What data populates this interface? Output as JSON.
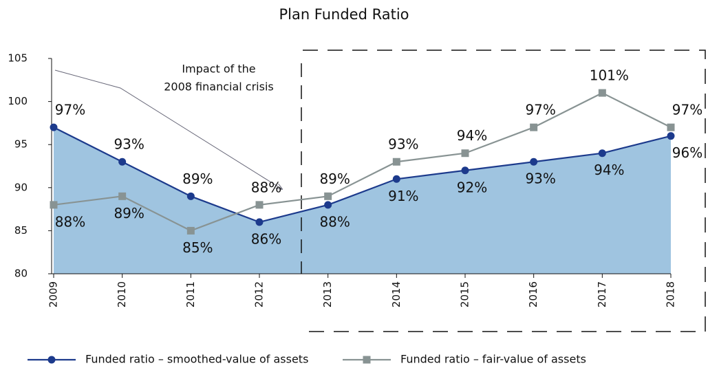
{
  "chart_data": {
    "type": "line",
    "title": "Plan Funded Ratio",
    "annotation": [
      "Impact of the",
      "2008 financial crisis"
    ],
    "categories": [
      "2009",
      "2010",
      "2011",
      "2012",
      "2013",
      "2014",
      "2015",
      "2016",
      "2017",
      "2018"
    ],
    "series": [
      {
        "name": "Funded ratio – smoothed-value of assets",
        "color": "#1c3a8c",
        "area_color": "#9fc4e0",
        "values": [
          97,
          93,
          89,
          86,
          88,
          91,
          92,
          93,
          94,
          96
        ],
        "value_labels": [
          "97%",
          "93%",
          "89%",
          "86%",
          "88%",
          "91%",
          "92%",
          "93%",
          "94%",
          "96%"
        ]
      },
      {
        "name": "Funded ratio – fair-value of assets",
        "color": "#889393",
        "values": [
          88,
          89,
          85,
          88,
          89,
          93,
          94,
          97,
          101,
          97
        ],
        "value_labels": [
          "88%",
          "89%",
          "85%",
          "88%",
          "89%",
          "93%",
          "94%",
          "97%",
          "101%",
          "97%"
        ]
      }
    ],
    "ylim": [
      80,
      105
    ],
    "yticks": [
      80,
      85,
      90,
      95,
      100,
      105
    ]
  }
}
